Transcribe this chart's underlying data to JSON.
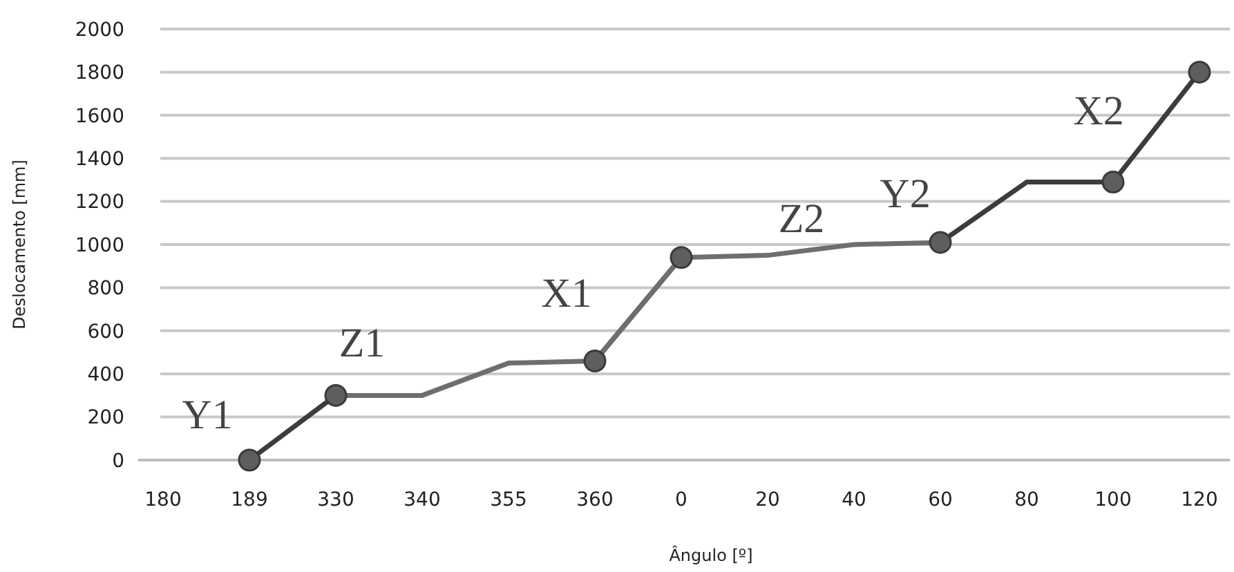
{
  "chart_data": {
    "type": "line",
    "xlabel": "Ângulo [º]",
    "ylabel": "Deslocamento [mm]",
    "categories": [
      "180",
      "189",
      "330",
      "340",
      "355",
      "360",
      "0",
      "20",
      "40",
      "60",
      "80",
      "100",
      "120"
    ],
    "series": [
      {
        "color": "#3c3c3c",
        "values": [
          null,
          0,
          300,
          null,
          null,
          460,
          940,
          null,
          null,
          1010,
          1290,
          1290,
          1800
        ]
      },
      {
        "color": "#6e6e6e",
        "values": [
          null,
          null,
          300,
          300,
          450,
          460,
          940,
          950,
          1000,
          1010,
          null,
          null,
          null
        ]
      },
      {
        "type": "scatter",
        "color": "#5e5e5e",
        "marker": "circle",
        "values": [
          null,
          0,
          300,
          null,
          null,
          460,
          940,
          null,
          null,
          1010,
          null,
          1290,
          1800
        ]
      }
    ],
    "ylim": [
      0,
      2000
    ],
    "yticks": [
      0,
      200,
      400,
      600,
      800,
      1000,
      1200,
      1400,
      1600,
      1800,
      2000
    ],
    "grid": "y",
    "line_style": "solid",
    "annotations": [
      "Y1",
      "Z1",
      "X1",
      "Z2",
      "Y2",
      "X2"
    ]
  }
}
